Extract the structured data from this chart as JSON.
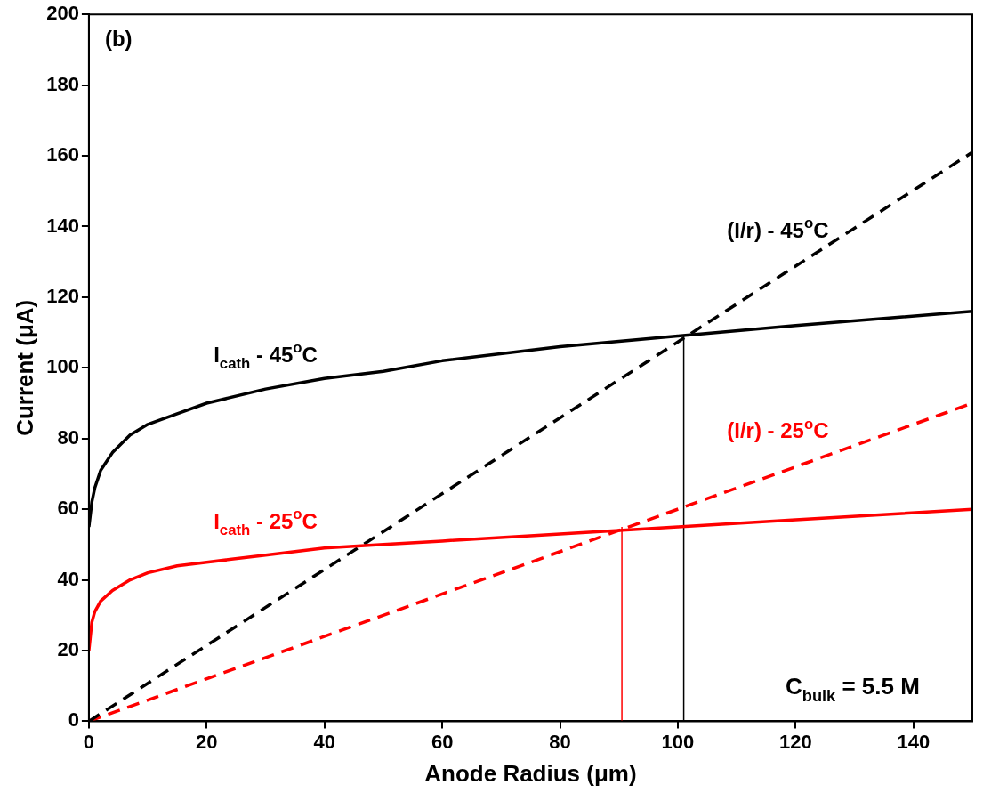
{
  "chart_data": {
    "type": "line",
    "xlabel": "Anode Radius (μm)",
    "ylabel": "Current (μA)",
    "annotations": [
      "(b)",
      "C$_{bulk}$ = 5.5 M"
    ],
    "series": [
      {
        "name": "I$_{cath}$ - 45$^{o}$C",
        "color": "#000000",
        "line_style": "solid",
        "x": [
          0,
          0.5,
          1,
          2,
          4,
          7,
          10,
          15,
          20,
          30,
          40,
          50,
          60,
          80,
          100,
          120,
          150
        ],
        "values": [
          55,
          62,
          66,
          71,
          76,
          81,
          84,
          87,
          90,
          94,
          97,
          99,
          102,
          106,
          109,
          112,
          116
        ]
      },
      {
        "name": "I$_{cath}$ - 25$^{o}$C",
        "color": "#ff0000",
        "line_style": "solid",
        "x": [
          0,
          0.5,
          1,
          2,
          4,
          7,
          10,
          15,
          20,
          30,
          40,
          50,
          60,
          80,
          100,
          120,
          150
        ],
        "values": [
          20,
          28,
          31,
          34,
          37,
          40,
          42,
          44,
          45,
          47,
          49,
          50,
          51,
          53,
          55,
          57,
          60
        ]
      },
      {
        "name": "(I/r) - 45$^{o}$C",
        "color": "#000000",
        "line_style": "dashed",
        "x": [
          0,
          150
        ],
        "values": [
          0,
          161
        ]
      },
      {
        "name": "(I/r) - 25$^{o}$C",
        "color": "#ff0000",
        "line_style": "dashed",
        "x": [
          0,
          150
        ],
        "values": [
          0,
          90
        ]
      },
      {
        "color": "#000000",
        "line_style": "solid",
        "x": [
          101,
          101
        ],
        "values": [
          0,
          109
        ]
      },
      {
        "color": "#ff0000",
        "line_style": "solid",
        "x": [
          90.5,
          90.5
        ],
        "values": [
          0,
          55
        ]
      }
    ],
    "xlim": [
      0,
      150
    ],
    "xticks": [
      0,
      20,
      40,
      60,
      80,
      100,
      120,
      140
    ],
    "ylim": [
      0,
      200
    ],
    "yticks": [
      0,
      20,
      40,
      60,
      80,
      100,
      120,
      140,
      160,
      180,
      200
    ],
    "grid": false,
    "legend": false,
    "marker": "none"
  }
}
